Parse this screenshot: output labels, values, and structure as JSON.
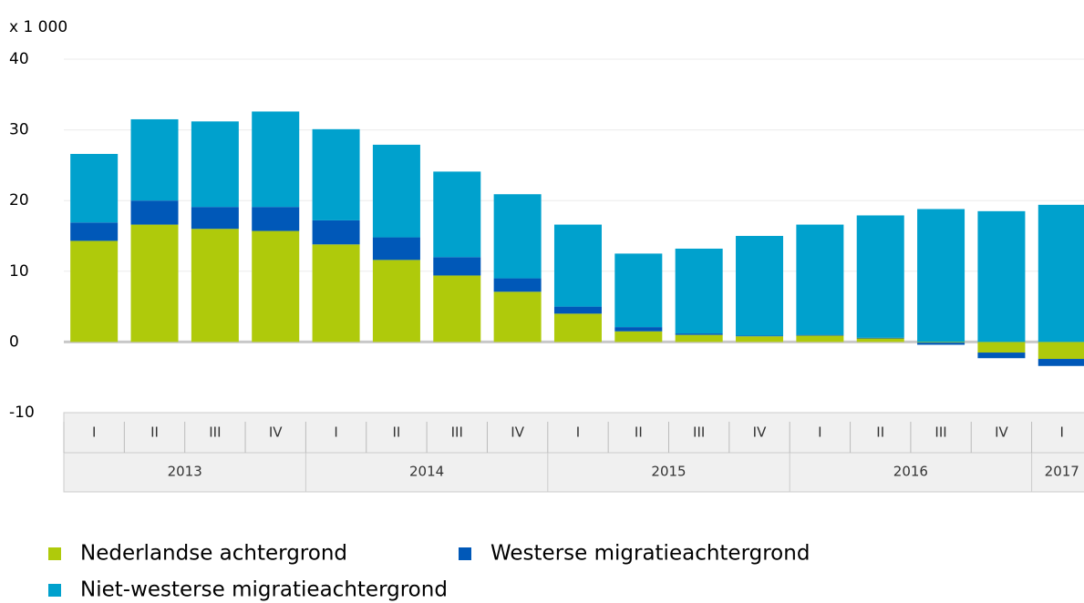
{
  "chart_data": {
    "type": "stacked_bar",
    "unit_label": "x 1 000",
    "categories": [
      "I",
      "II",
      "III",
      "IV",
      "I",
      "II",
      "III",
      "IV",
      "I",
      "II",
      "III",
      "IV",
      "I",
      "II",
      "III",
      "IV",
      "I"
    ],
    "x_groups": [
      {
        "label": "2013",
        "size": 4
      },
      {
        "label": "2014",
        "size": 4
      },
      {
        "label": "2015",
        "size": 4
      },
      {
        "label": "2016",
        "size": 4
      },
      {
        "label": "2017",
        "size": 1
      }
    ],
    "series": [
      {
        "name": "Nederlandse achtergrond",
        "color": "#afca0b",
        "values": [
          14.3,
          16.6,
          16.0,
          15.7,
          13.8,
          11.6,
          9.4,
          7.1,
          4.0,
          1.5,
          1.0,
          0.8,
          0.9,
          0.5,
          -0.1,
          -1.5,
          -2.4
        ]
      },
      {
        "name": "Westerse migratieachtergrond",
        "color": "#0058b8",
        "values": [
          2.6,
          3.4,
          3.1,
          3.4,
          3.4,
          3.2,
          2.6,
          1.9,
          1.0,
          0.6,
          0.2,
          0.1,
          0.1,
          0.1,
          -0.3,
          -0.8,
          -1.0
        ]
      },
      {
        "name": "Niet-westerse migratieachtergrond",
        "color": "#00a1cd",
        "values": [
          9.7,
          11.5,
          12.1,
          13.5,
          12.9,
          13.1,
          12.1,
          11.9,
          11.6,
          10.4,
          12.0,
          14.1,
          15.6,
          17.3,
          18.8,
          18.5,
          19.4
        ]
      }
    ],
    "ylim": [
      -10,
      40
    ],
    "yticks": [
      -10,
      0,
      10,
      20,
      30,
      40
    ],
    "grid": true
  }
}
